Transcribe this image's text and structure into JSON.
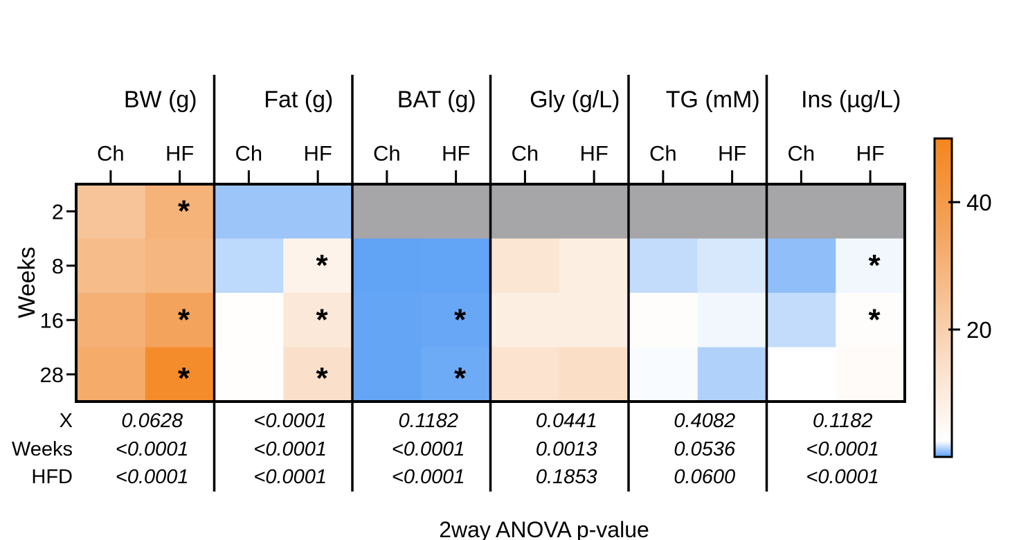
{
  "chart_data": {
    "type": "heatmap",
    "ylabel": "Weeks",
    "xlabel": "2way ANOVA p-value",
    "row_labels": [
      "2",
      "8",
      "16",
      "28"
    ],
    "col_labels": [
      "Ch",
      "HF"
    ],
    "stat_labels": [
      "X",
      "Weeks",
      "HFD"
    ],
    "missing_color": "#a6a5a8",
    "colorbar": {
      "range": [
        0,
        50
      ],
      "ticks": [
        {
          "value": 20,
          "label": "20"
        },
        {
          "value": 40,
          "label": "40"
        }
      ],
      "colors": [
        "#5a9ff5",
        "#ffffff",
        "#f9d7ba",
        "#f4a560",
        "#f5861e"
      ]
    },
    "groups": [
      {
        "title": "BW (g)",
        "values": [
          [
            24,
            30
          ],
          [
            27,
            29
          ],
          [
            31,
            36
          ],
          [
            33,
            47
          ]
        ],
        "stars": [
          [
            false,
            true
          ],
          [
            false,
            false
          ],
          [
            false,
            true
          ],
          [
            false,
            true
          ]
        ],
        "pvalues": [
          "0.0628",
          "<0.0001",
          "<0.0001"
        ]
      },
      {
        "title": "Fat (g)",
        "values": [
          [
            1,
            1
          ],
          [
            1.5,
            7
          ],
          [
            3,
            11
          ],
          [
            3,
            14
          ]
        ],
        "stars": [
          [
            false,
            false
          ],
          [
            false,
            true
          ],
          [
            false,
            true
          ],
          [
            false,
            true
          ]
        ],
        "pvalues": [
          "<0.0001",
          "<0.0001",
          "<0.0001"
        ]
      },
      {
        "title": "BAT (g)",
        "values": [
          [
            null,
            null
          ],
          [
            0.1,
            0.12
          ],
          [
            0.15,
            0.2
          ],
          [
            0.15,
            0.3
          ]
        ],
        "stars": [
          [
            false,
            false
          ],
          [
            false,
            false
          ],
          [
            false,
            true
          ],
          [
            false,
            true
          ]
        ],
        "pvalues": [
          "0.1182",
          "<0.0001",
          "<0.0001"
        ]
      },
      {
        "title": "Gly (g/L)",
        "values": [
          [
            null,
            null
          ],
          [
            12,
            9
          ],
          [
            9,
            9
          ],
          [
            13,
            15
          ]
        ],
        "stars": [
          [
            false,
            false
          ],
          [
            false,
            false
          ],
          [
            false,
            false
          ],
          [
            false,
            false
          ]
        ],
        "pvalues": [
          "0.0441",
          "0.0013",
          "0.1853"
        ]
      },
      {
        "title": "TG (mM)",
        "values": [
          [
            null,
            null
          ],
          [
            1.6,
            1.9
          ],
          [
            3.3,
            2.3
          ],
          [
            2.4,
            1.3
          ]
        ],
        "stars": [
          [
            false,
            false
          ],
          [
            false,
            false
          ],
          [
            false,
            false
          ],
          [
            false,
            false
          ]
        ],
        "pvalues": [
          "0.4082",
          "0.0536",
          "0.0600"
        ]
      },
      {
        "title": "Ins (µg/L)",
        "values": [
          [
            null,
            null
          ],
          [
            0.8,
            2.3
          ],
          [
            1.6,
            3.3
          ],
          [
            2.5,
            4
          ]
        ],
        "stars": [
          [
            false,
            false
          ],
          [
            false,
            true
          ],
          [
            false,
            true
          ],
          [
            false,
            false
          ]
        ],
        "pvalues": [
          "0.1182",
          "<0.0001",
          "<0.0001"
        ]
      }
    ]
  }
}
